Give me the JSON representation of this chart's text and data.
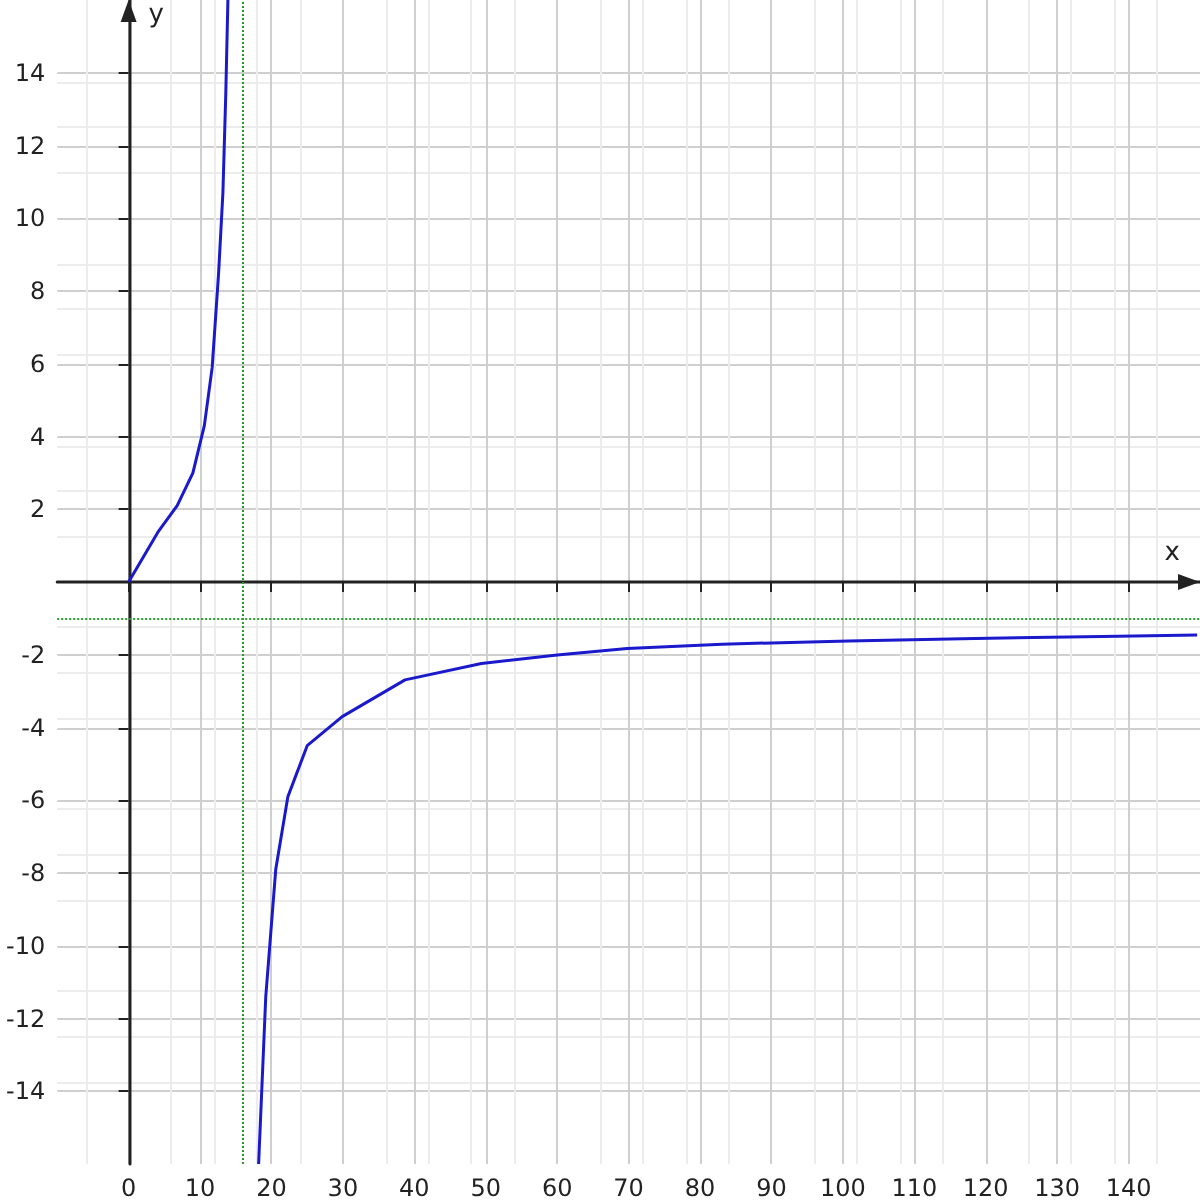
{
  "chart_data": {
    "type": "line",
    "xlabel": "x",
    "ylabel": "y",
    "xlim": [
      -10,
      150
    ],
    "ylim": [
      -16,
      16
    ],
    "xticks": [
      0,
      10,
      20,
      30,
      40,
      50,
      60,
      70,
      80,
      90,
      100,
      110,
      120,
      130,
      140
    ],
    "yticks": [
      -14,
      -12,
      -10,
      -8,
      -6,
      -4,
      -2,
      2,
      4,
      6,
      8,
      10,
      12,
      14
    ],
    "series": [
      {
        "color": "#1a1acc",
        "x": [
          0,
          4.2,
          6.8,
          9.0,
          10.6,
          11.7,
          12.6,
          13.2,
          13.6,
          13.9
        ],
        "values": [
          0,
          1.4,
          2.1,
          3.0,
          4.3,
          5.9,
          8.5,
          10.7,
          13.4,
          16.0
        ]
      },
      {
        "color": "#1a1acc",
        "x": [
          18.2,
          19.2,
          20.6,
          22.3,
          25.0,
          29.9,
          38.7,
          49.4,
          60.0,
          69.8,
          83.1,
          100.8,
          118.5,
          136.3,
          149.6
        ],
        "values": [
          -16.0,
          -11.4,
          -7.9,
          -5.9,
          -4.5,
          -3.7,
          -2.69,
          -2.24,
          -2.01,
          -1.83,
          -1.71,
          -1.62,
          -1.55,
          -1.5,
          -1.46
        ]
      }
    ],
    "ref_lines": [
      {
        "axis": "x",
        "value": 16,
        "color": "#2a9a2a",
        "line_style": "dotted"
      },
      {
        "axis": "y",
        "value": -1,
        "color": "#2a9a2a",
        "line_style": "dotted"
      }
    ],
    "grid": true,
    "marker": "none",
    "line_style": "solid"
  }
}
